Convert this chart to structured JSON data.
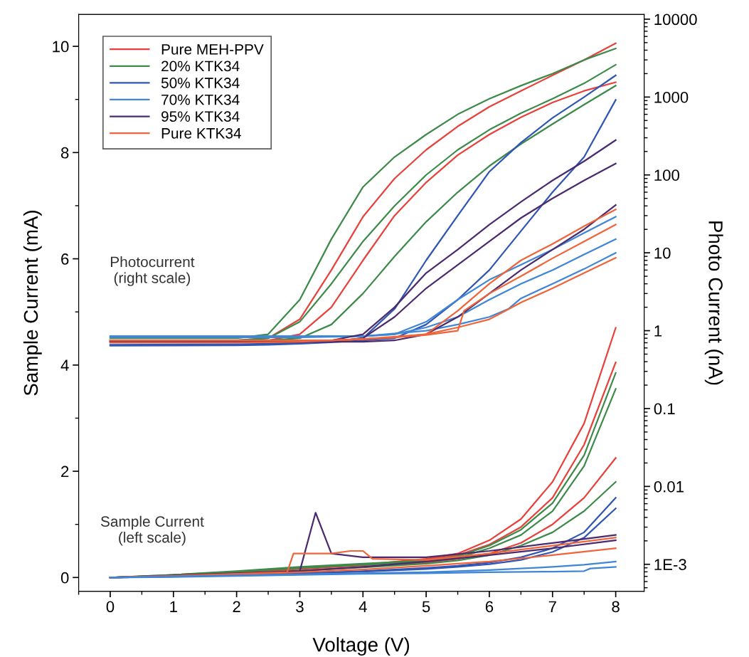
{
  "chart_data": {
    "type": "line",
    "xlabel": "Voltage (V)",
    "ylabel": "Sample Current (mA)",
    "y2label": "Photo Current (nA)",
    "xlim": [
      -0.5,
      8.45
    ],
    "xticks": [
      0,
      1,
      2,
      3,
      4,
      5,
      6,
      7,
      8
    ],
    "ylim": [
      -0.26,
      10.6
    ],
    "yticks": [
      0,
      2,
      4,
      6,
      8,
      10
    ],
    "y2lim": [
      0.00045,
      11500
    ],
    "y2ticks": [
      {
        "value": 0.001,
        "label": "1E-3"
      },
      0.01,
      0.1,
      1,
      10,
      100,
      1000,
      10000
    ],
    "log": "y2",
    "legend": "top left",
    "grid": false,
    "marker": "none",
    "line_style": "solid",
    "annotations": [
      "Photocurrent\n(right scale)",
      "Sample Current\n(left scale)"
    ],
    "series": [
      {
        "name": "Pure MEH-PPV",
        "color": "#e8413c",
        "axis": "y2",
        "x": [
          0,
          2,
          2.5,
          3,
          3.5,
          4,
          4.5,
          5,
          5.5,
          6,
          6.5,
          7,
          7.5,
          8
        ],
        "values": [
          0.75,
          0.75,
          0.8,
          1.4,
          6,
          29,
          90,
          210,
          420,
          750,
          1200,
          1900,
          3000,
          4900
        ]
      },
      {
        "color": "#e8413c",
        "axis": "y2",
        "x": [
          0,
          2,
          2.5,
          3,
          3.5,
          4,
          4.5,
          5,
          5.5,
          6,
          6.5,
          7,
          7.5,
          8
        ],
        "values": [
          0.75,
          0.75,
          0.75,
          0.9,
          2,
          8,
          30,
          80,
          180,
          330,
          550,
          850,
          1200,
          1550
        ]
      },
      {
        "name": "20% KTK34",
        "color": "#3d8a4a",
        "axis": "y2",
        "x": [
          0,
          2,
          2.5,
          3,
          3.5,
          4,
          4.5,
          5,
          5.5,
          6,
          6.5,
          7,
          7.5,
          8
        ],
        "values": [
          0.8,
          0.8,
          0.9,
          2.5,
          15,
          70,
          170,
          330,
          600,
          950,
          1400,
          2000,
          3000,
          4200
        ]
      },
      {
        "color": "#3d8a4a",
        "axis": "y2",
        "x": [
          0,
          2,
          2.5,
          3,
          3.5,
          4,
          4.5,
          5,
          5.5,
          6,
          6.5,
          7,
          7.5,
          8
        ],
        "values": [
          0.75,
          0.75,
          0.8,
          1.3,
          4,
          14,
          40,
          100,
          210,
          380,
          620,
          950,
          1500,
          2600
        ]
      },
      {
        "color": "#3d8a4a",
        "axis": "y2",
        "x": [
          0,
          2,
          2.5,
          3,
          3.5,
          4,
          4.5,
          5,
          5.5,
          6,
          6.5,
          7,
          7.5,
          8
        ],
        "values": [
          0.75,
          0.75,
          0.75,
          0.8,
          1.2,
          3,
          9,
          25,
          60,
          130,
          250,
          450,
          800,
          1400
        ]
      },
      {
        "name": "50% KTK34",
        "color": "#2f55b5",
        "axis": "y2",
        "x": [
          0,
          2,
          2.5,
          3,
          3.5,
          4,
          4.5,
          5,
          5.5,
          6,
          6.5,
          7,
          7.5,
          8
        ],
        "values": [
          0.66,
          0.67,
          0.68,
          0.7,
          0.73,
          0.8,
          1.9,
          8,
          30,
          110,
          260,
          540,
          1000,
          1900
        ]
      },
      {
        "color": "#2f55b5",
        "axis": "y2",
        "x": [
          0,
          2,
          2.5,
          3,
          3.5,
          4,
          4.5,
          5,
          5.5,
          6,
          6.5,
          7,
          7.5,
          8
        ],
        "values": [
          0.64,
          0.65,
          0.66,
          0.68,
          0.71,
          0.75,
          0.8,
          1.2,
          2.5,
          6,
          19,
          60,
          170,
          920
        ]
      },
      {
        "name": "70% KTK34",
        "color": "#3f86d6",
        "axis": "y2",
        "x": [
          0,
          2,
          2.5,
          3,
          3.5,
          4,
          4.5,
          5,
          5.5,
          6,
          6.5,
          7,
          7.5,
          8
        ],
        "values": [
          0.85,
          0.85,
          0.85,
          0.85,
          0.85,
          0.85,
          0.9,
          1.3,
          2.5,
          4.5,
          7,
          11,
          18,
          29
        ]
      },
      {
        "color": "#3f86d6",
        "axis": "y2",
        "x": [
          0,
          2,
          2.5,
          3,
          3.5,
          4,
          4.5,
          5,
          5.5,
          6,
          6.5,
          7,
          7.5,
          8
        ],
        "values": [
          0.85,
          0.85,
          0.85,
          0.85,
          0.85,
          0.85,
          0.9,
          1.1,
          1.5,
          2.5,
          4,
          6,
          9.5,
          15
        ]
      },
      {
        "color": "#3f86d6",
        "axis": "y2",
        "x": [
          0,
          2,
          3,
          4,
          5,
          5.5,
          6,
          6.3,
          6.5,
          7,
          7.5,
          8
        ],
        "values": [
          0.82,
          0.82,
          0.82,
          0.85,
          1,
          1.2,
          1.5,
          1.9,
          2.6,
          4,
          6.2,
          10
        ]
      },
      {
        "name": "95% KTK34",
        "color": "#4b2a6e",
        "axis": "y2",
        "x": [
          0,
          2,
          2.5,
          3,
          3.5,
          4,
          4.5,
          5,
          5.5,
          6,
          6.5,
          7,
          7.5,
          8
        ],
        "values": [
          0.72,
          0.72,
          0.72,
          0.72,
          0.75,
          0.9,
          2,
          5.5,
          11,
          23,
          45,
          85,
          150,
          280
        ]
      },
      {
        "color": "#4b2a6e",
        "axis": "y2",
        "x": [
          0,
          2,
          2.5,
          3,
          3.5,
          4,
          4.5,
          5,
          5.5,
          6,
          6.5,
          7,
          7.5,
          8
        ],
        "values": [
          0.72,
          0.72,
          0.72,
          0.72,
          0.72,
          0.8,
          1.5,
          3.5,
          7,
          14,
          28,
          50,
          85,
          140
        ]
      },
      {
        "color": "#4b2a6e",
        "axis": "y2",
        "x": [
          0,
          2,
          2.5,
          3,
          3.5,
          4,
          4.5,
          5,
          5.5,
          6,
          6.5,
          7,
          7.5,
          8
        ],
        "values": [
          0.72,
          0.72,
          0.72,
          0.72,
          0.72,
          0.72,
          0.75,
          0.9,
          1.5,
          3,
          6,
          11,
          20,
          41
        ]
      },
      {
        "name": "Pure KTK34",
        "color": "#f0643a",
        "axis": "y2",
        "x": [
          0,
          2,
          2.5,
          3,
          3.5,
          4,
          4.5,
          5,
          5.5,
          6,
          6.5,
          7,
          7.5,
          8
        ],
        "values": [
          0.75,
          0.75,
          0.75,
          0.75,
          0.75,
          0.78,
          0.82,
          0.9,
          1.8,
          4,
          8,
          13,
          22,
          36
        ]
      },
      {
        "color": "#f0643a",
        "axis": "y2",
        "x": [
          0,
          2,
          2.5,
          3,
          3.5,
          4,
          4.5,
          5,
          5.5,
          5.6,
          6,
          6.5,
          7,
          7.5,
          8
        ],
        "values": [
          0.75,
          0.75,
          0.75,
          0.75,
          0.75,
          0.78,
          0.82,
          0.88,
          1,
          1.8,
          3,
          5,
          8.5,
          14,
          23
        ]
      },
      {
        "color": "#f0643a",
        "axis": "y2",
        "x": [
          0,
          2,
          3,
          4,
          5,
          5.5,
          6,
          6.2,
          6.5,
          7,
          7.5,
          8
        ],
        "values": [
          0.7,
          0.7,
          0.72,
          0.78,
          0.9,
          1.1,
          1.4,
          1.7,
          2.3,
          3.5,
          5.5,
          8.6
        ]
      },
      {
        "color": "#e8413c",
        "x": [
          0,
          1,
          2,
          3,
          4,
          5,
          5.5,
          6,
          6.5,
          7,
          7.5,
          8
        ],
        "values": [
          0,
          0.04,
          0.1,
          0.17,
          0.24,
          0.35,
          0.45,
          0.7,
          1.1,
          1.8,
          2.9,
          4.7
        ]
      },
      {
        "color": "#e8413c",
        "x": [
          0,
          1,
          2,
          3,
          4,
          5,
          5.5,
          6,
          6.5,
          7,
          7.5,
          8
        ],
        "values": [
          0,
          0.04,
          0.1,
          0.16,
          0.23,
          0.33,
          0.42,
          0.62,
          0.95,
          1.5,
          2.5,
          4.05
        ]
      },
      {
        "color": "#e8413c",
        "x": [
          0,
          1,
          2,
          3,
          4,
          5,
          5.5,
          6,
          6.5,
          7,
          7.5,
          8
        ],
        "values": [
          0,
          0.03,
          0.08,
          0.13,
          0.2,
          0.28,
          0.35,
          0.45,
          0.65,
          1.0,
          1.5,
          2.25
        ]
      },
      {
        "color": "#3d8a4a",
        "x": [
          0,
          1,
          2,
          3,
          4,
          5,
          5.5,
          6,
          6.5,
          7,
          7.5,
          8
        ],
        "values": [
          0,
          0.05,
          0.12,
          0.2,
          0.26,
          0.32,
          0.4,
          0.6,
          0.9,
          1.4,
          2.3,
          3.85
        ]
      },
      {
        "color": "#3d8a4a",
        "x": [
          0,
          1,
          2,
          3,
          4,
          5,
          5.5,
          6,
          6.5,
          7,
          7.5,
          8
        ],
        "values": [
          0,
          0.05,
          0.11,
          0.18,
          0.24,
          0.3,
          0.37,
          0.55,
          0.8,
          1.25,
          2.1,
          3.55
        ]
      },
      {
        "color": "#3d8a4a",
        "x": [
          0,
          1,
          2,
          3,
          4,
          5,
          5.5,
          6,
          6.5,
          7,
          7.5,
          8
        ],
        "values": [
          0,
          0.03,
          0.08,
          0.13,
          0.19,
          0.26,
          0.32,
          0.42,
          0.6,
          0.85,
          1.25,
          1.8
        ]
      },
      {
        "color": "#2f55b5",
        "x": [
          0,
          1,
          2,
          3,
          4,
          5,
          5.5,
          6,
          6.5,
          7,
          7.5,
          8
        ],
        "values": [
          0,
          0.02,
          0.05,
          0.08,
          0.12,
          0.18,
          0.22,
          0.28,
          0.38,
          0.55,
          0.85,
          1.5
        ]
      },
      {
        "color": "#2f55b5",
        "x": [
          0,
          1,
          2,
          3,
          4,
          5,
          5.5,
          6,
          6.5,
          7,
          7.5,
          8
        ],
        "values": [
          0,
          0.02,
          0.05,
          0.08,
          0.11,
          0.16,
          0.2,
          0.25,
          0.33,
          0.48,
          0.75,
          1.3
        ]
      },
      {
        "color": "#4b2a6e",
        "x": [
          0,
          1,
          2,
          3,
          3.25,
          3.5,
          4,
          5,
          6,
          7,
          8
        ],
        "values": [
          0,
          0.04,
          0.08,
          0.12,
          1.22,
          0.45,
          0.38,
          0.38,
          0.5,
          0.65,
          0.8
        ]
      },
      {
        "color": "#4b2a6e",
        "x": [
          0,
          1,
          2,
          3,
          4,
          5,
          6,
          7,
          8
        ],
        "values": [
          0,
          0.03,
          0.07,
          0.12,
          0.2,
          0.3,
          0.42,
          0.55,
          0.7
        ]
      },
      {
        "color": "#f0643a",
        "x": [
          0,
          1,
          2,
          2.8,
          2.9,
          3.5,
          3.8,
          4.0,
          4.15,
          5,
          6,
          7,
          8
        ],
        "values": [
          0,
          0.03,
          0.07,
          0.1,
          0.45,
          0.45,
          0.5,
          0.5,
          0.35,
          0.33,
          0.45,
          0.6,
          0.75
        ]
      },
      {
        "color": "#f0643a",
        "x": [
          0,
          1,
          2,
          3,
          4,
          5,
          6,
          7,
          8
        ],
        "values": [
          0,
          0.03,
          0.06,
          0.1,
          0.15,
          0.22,
          0.3,
          0.42,
          0.55
        ]
      },
      {
        "color": "#3f86d6",
        "x": [
          0,
          1,
          2,
          3,
          4,
          5,
          5.5,
          6,
          6.5,
          7,
          7.5,
          8
        ],
        "values": [
          0,
          0.02,
          0.04,
          0.06,
          0.08,
          0.1,
          0.12,
          0.14,
          0.17,
          0.2,
          0.24,
          0.3
        ]
      },
      {
        "color": "#3f86d6",
        "x": [
          0,
          1,
          2,
          3,
          4,
          5,
          6,
          7,
          7.5,
          7.6,
          8
        ],
        "values": [
          0,
          0.01,
          0.03,
          0.05,
          0.07,
          0.08,
          0.1,
          0.11,
          0.12,
          0.17,
          0.2
        ]
      }
    ]
  }
}
